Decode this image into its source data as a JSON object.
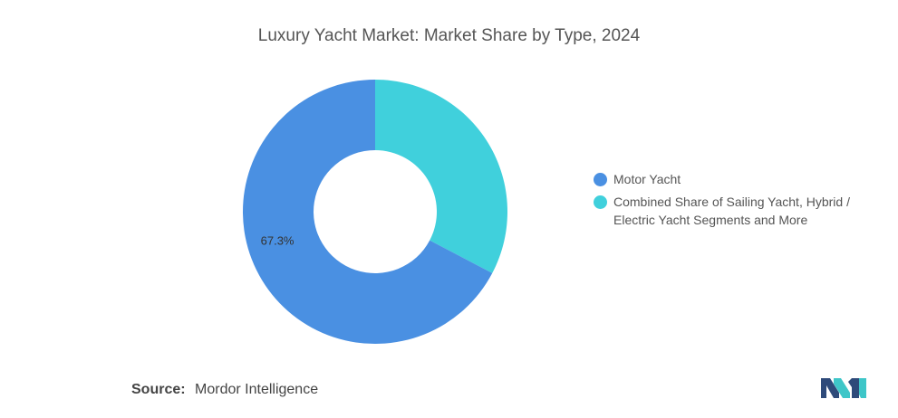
{
  "chart_data": {
    "type": "pie",
    "title": "Luxury Yacht Market: Market Share by Type, 2024",
    "donut": true,
    "legend_position": "right",
    "slices": [
      {
        "name": "Motor Yacht",
        "value": 67.3,
        "label": "67.3%",
        "color": "#4a90e2"
      },
      {
        "name": "Combined Share of Sailing Yacht, Hybrid / Electric Yacht Segments and More",
        "value": 32.7,
        "label": "",
        "color": "#40d0dc"
      }
    ]
  },
  "legend": {
    "items": [
      {
        "label": "Motor Yacht",
        "color": "#4a90e2"
      },
      {
        "label": "Combined Share of Sailing Yacht, Hybrid / Electric Yacht Segments and More",
        "color": "#40d0dc"
      }
    ]
  },
  "source": {
    "label": "Source:",
    "text": "Mordor Intelligence"
  },
  "logo": {
    "icon": "mordor-intelligence-logo",
    "colors": [
      "#2e4a7a",
      "#3ec6c8"
    ]
  }
}
